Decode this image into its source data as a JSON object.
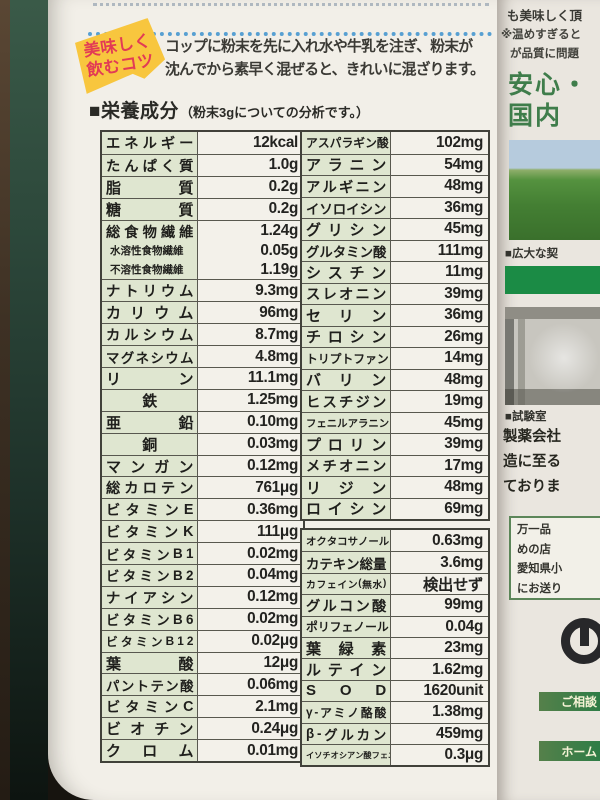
{
  "badge": {
    "line1": "美味しく",
    "line2": "飲むコツ"
  },
  "tip": {
    "line1": "コップに粉末を先に入れ水や牛乳を注ぎ、粉末が",
    "line2": "沈んでから素早く混ぜると、きれいに混ざります。"
  },
  "section": {
    "title": "■栄養成分",
    "subtitle": "（粉末3gについての分析です。）"
  },
  "nutrition_left": {
    "rows": [
      {
        "name": "エネルギー",
        "value": "12kcal"
      },
      {
        "name": "たんぱく質",
        "value": "1.0g"
      },
      {
        "name": "脂質",
        "value": "0.2g"
      },
      {
        "name": "糖質",
        "value": "0.2g"
      },
      {
        "name": "総食物繊維",
        "value": "1.24g"
      },
      {
        "name": "水溶性食物繊維",
        "value": "0.05g",
        "sub": true
      },
      {
        "name": "不溶性食物繊維",
        "value": "1.19g",
        "sub": true
      },
      {
        "name": "ナトリウム",
        "value": "9.3mg"
      },
      {
        "name": "カリウム",
        "value": "96mg"
      },
      {
        "name": "カルシウム",
        "value": "8.7mg"
      },
      {
        "name": "マグネシウム",
        "value": "4.8mg"
      },
      {
        "name": "リン",
        "value": "11.1mg"
      },
      {
        "name": "鉄",
        "value": "1.25mg"
      },
      {
        "name": "亜鉛",
        "value": "0.10mg"
      },
      {
        "name": "銅",
        "value": "0.03mg"
      },
      {
        "name": "マンガン",
        "value": "0.12mg"
      },
      {
        "name": "総カロテン",
        "value": "761μg"
      },
      {
        "name": "ビタミンE",
        "value": "0.36mg"
      },
      {
        "name": "ビタミンK",
        "value": "111μg"
      },
      {
        "name": "ビタミンB1",
        "value": "0.02mg"
      },
      {
        "name": "ビタミンB2",
        "value": "0.04mg"
      },
      {
        "name": "ナイアシン",
        "value": "0.12mg"
      },
      {
        "name": "ビタミンB6",
        "value": "0.02mg"
      },
      {
        "name": "ビタミンB12",
        "value": "0.02μg"
      },
      {
        "name": "葉酸",
        "value": "12μg"
      },
      {
        "name": "パントテン酸",
        "value": "0.06mg"
      },
      {
        "name": "ビタミンC",
        "value": "2.1mg"
      },
      {
        "name": "ビオチン",
        "value": "0.24μg"
      },
      {
        "name": "クロム",
        "value": "0.01mg"
      }
    ]
  },
  "amino_acids": {
    "rows": [
      {
        "name": "アスパラギン酸",
        "value": "102mg"
      },
      {
        "name": "アラニン",
        "value": "54mg"
      },
      {
        "name": "アルギニン",
        "value": "48mg"
      },
      {
        "name": "イソロイシン",
        "value": "36mg"
      },
      {
        "name": "グリシン",
        "value": "45mg"
      },
      {
        "name": "グルタミン酸",
        "value": "111mg"
      },
      {
        "name": "シスチン",
        "value": "11mg"
      },
      {
        "name": "スレオニン",
        "value": "39mg"
      },
      {
        "name": "セリン",
        "value": "36mg"
      },
      {
        "name": "チロシン",
        "value": "26mg"
      },
      {
        "name": "トリプトファン",
        "value": "14mg"
      },
      {
        "name": "バリン",
        "value": "48mg"
      },
      {
        "name": "ヒスチジン",
        "value": "19mg"
      },
      {
        "name": "フェニルアラニン",
        "value": "45mg"
      },
      {
        "name": "プロリン",
        "value": "39mg"
      },
      {
        "name": "メチオニン",
        "value": "17mg"
      },
      {
        "name": "リジン",
        "value": "48mg"
      },
      {
        "name": "ロイシン",
        "value": "69mg"
      }
    ]
  },
  "other_components": {
    "rows": [
      {
        "name": "オクタコサノール",
        "value": "0.63mg"
      },
      {
        "name": "カテキン総量",
        "value": "3.6mg"
      },
      {
        "name": "カフェイン(無水)",
        "value": "検出せず"
      },
      {
        "name": "グルコン酸",
        "value": "99mg"
      },
      {
        "name": "ポリフェノール",
        "value": "0.04g"
      },
      {
        "name": "葉緑素",
        "value": "23mg"
      },
      {
        "name": "ルテイン",
        "value": "1.62mg"
      },
      {
        "name": "S O D",
        "value": "1620unit"
      },
      {
        "name": "γ-アミノ酪酸",
        "value": "1.38mg"
      },
      {
        "name": "β-グルカン",
        "value": "459mg"
      },
      {
        "name": "イソチオシアン酸フェニル",
        "value": "0.3μg"
      }
    ]
  },
  "right_panel": {
    "top_lines": [
      "も美味しく頂",
      "※温めすぎると",
      "が品質に問題"
    ],
    "heading_line1": "安心・",
    "heading_line2": "国内",
    "farm_caption": "■広大な契",
    "lab_caption": "■試験室",
    "para_lines": [
      "製薬会社",
      "造に至る",
      "ておりま"
    ],
    "box_lines": [
      "万一品",
      "めの店",
      "愛知県小",
      "にお送り"
    ],
    "consult_label": "ご相談",
    "home_label": "ホーム"
  },
  "colors": {
    "accent_green": "#1b8b45",
    "heading_green": "#3f7d4b",
    "cell_green": "#dfe6d0",
    "badge_yellow": "#f8c63e",
    "badge_red": "#e23b55",
    "dot_blue": "#58a0d2"
  }
}
